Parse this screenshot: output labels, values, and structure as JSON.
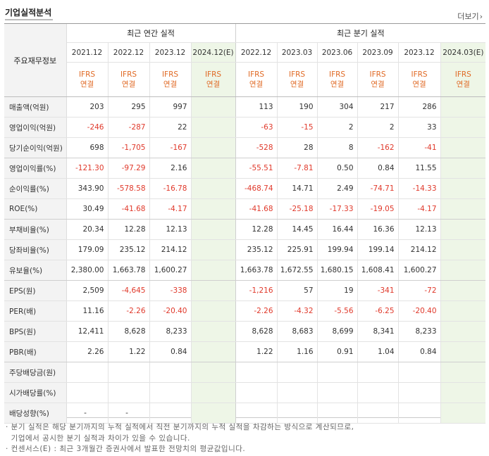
{
  "section_title": "기업실적분석",
  "more_link": "더보기",
  "header": {
    "corner": "주요재무정보",
    "annual_label": "최근 연간 실적",
    "quarter_label": "최근 분기 실적",
    "annual_periods": [
      {
        "label": "2021.12",
        "estimate": false
      },
      {
        "label": "2022.12",
        "estimate": false
      },
      {
        "label": "2023.12",
        "estimate": false
      },
      {
        "label": "2024.12(E)",
        "estimate": true
      }
    ],
    "quarter_periods": [
      {
        "label": "2022.12",
        "estimate": false
      },
      {
        "label": "2023.03",
        "estimate": false
      },
      {
        "label": "2023.06",
        "estimate": false
      },
      {
        "label": "2023.09",
        "estimate": false
      },
      {
        "label": "2023.12",
        "estimate": false
      },
      {
        "label": "2024.03(E)",
        "estimate": true
      }
    ],
    "basis_top": "IFRS",
    "basis_bottom": "연결"
  },
  "rows": [
    {
      "label": "매출액(억원)",
      "annual": [
        "203",
        "295",
        "997",
        ""
      ],
      "quarter": [
        "113",
        "190",
        "304",
        "217",
        "286",
        ""
      ]
    },
    {
      "label": "영업이익(억원)",
      "annual": [
        "-246",
        "-287",
        "22",
        ""
      ],
      "quarter": [
        "-63",
        "-15",
        "2",
        "2",
        "33",
        ""
      ]
    },
    {
      "label": "당기순이익(억원)",
      "annual": [
        "698",
        "-1,705",
        "-167",
        ""
      ],
      "quarter": [
        "-528",
        "28",
        "8",
        "-162",
        "-41",
        ""
      ]
    },
    {
      "label": "영업이익률(%)",
      "annual": [
        "-121.30",
        "-97.29",
        "2.16",
        ""
      ],
      "quarter": [
        "-55.51",
        "-7.81",
        "0.50",
        "0.84",
        "11.55",
        ""
      ]
    },
    {
      "label": "순이익률(%)",
      "annual": [
        "343.90",
        "-578.58",
        "-16.78",
        ""
      ],
      "quarter": [
        "-468.74",
        "14.71",
        "2.49",
        "-74.71",
        "-14.33",
        ""
      ]
    },
    {
      "label": "ROE(%)",
      "annual": [
        "30.49",
        "-41.68",
        "-4.17",
        ""
      ],
      "quarter": [
        "-41.68",
        "-25.18",
        "-17.33",
        "-19.05",
        "-4.17",
        ""
      ]
    },
    {
      "label": "부채비율(%)",
      "annual": [
        "20.34",
        "12.28",
        "12.13",
        ""
      ],
      "quarter": [
        "12.28",
        "14.45",
        "16.44",
        "16.36",
        "12.13",
        ""
      ]
    },
    {
      "label": "당좌비율(%)",
      "annual": [
        "179.09",
        "235.12",
        "214.12",
        ""
      ],
      "quarter": [
        "235.12",
        "225.91",
        "199.94",
        "199.14",
        "214.12",
        ""
      ]
    },
    {
      "label": "유보율(%)",
      "annual": [
        "2,380.00",
        "1,663.78",
        "1,600.27",
        ""
      ],
      "quarter": [
        "1,663.78",
        "1,672.55",
        "1,680.15",
        "1,608.41",
        "1,600.27",
        ""
      ]
    },
    {
      "label": "EPS(원)",
      "annual": [
        "2,509",
        "-4,645",
        "-338",
        ""
      ],
      "quarter": [
        "-1,216",
        "57",
        "19",
        "-341",
        "-72",
        ""
      ]
    },
    {
      "label": "PER(배)",
      "annual": [
        "11.16",
        "-2.26",
        "-20.40",
        ""
      ],
      "quarter": [
        "-2.26",
        "-4.32",
        "-5.56",
        "-6.25",
        "-20.40",
        ""
      ]
    },
    {
      "label": "BPS(원)",
      "annual": [
        "12,411",
        "8,628",
        "8,233",
        ""
      ],
      "quarter": [
        "8,628",
        "8,683",
        "8,699",
        "8,341",
        "8,233",
        ""
      ]
    },
    {
      "label": "PBR(배)",
      "annual": [
        "2.26",
        "1.22",
        "0.84",
        ""
      ],
      "quarter": [
        "1.22",
        "1.16",
        "0.91",
        "1.04",
        "0.84",
        ""
      ]
    },
    {
      "label": "주당배당금(원)",
      "annual": [
        "",
        "",
        "",
        ""
      ],
      "quarter": [
        "",
        "",
        "",
        "",
        "",
        ""
      ]
    },
    {
      "label": "시가배당률(%)",
      "annual": [
        "",
        "",
        "",
        ""
      ],
      "quarter": [
        "",
        "",
        "",
        "",
        "",
        ""
      ]
    },
    {
      "label": "배당성향(%)",
      "annual": [
        "-",
        "-",
        "",
        ""
      ],
      "quarter": [
        "",
        "",
        "",
        "",
        "",
        ""
      ]
    }
  ],
  "notes": [
    "· 분기 실적은 해당 분기까지의 누적 실적에서 직전 분기까지의 누적 실적을 차감하는 방식으로 계산되므로,",
    "  기업에서 공시한 분기 실적과 차이가 있을 수 있습니다.",
    "· 컨센서스(E) : 최근 3개월간 증권사에서 발표한 전망치의 평균값입니다."
  ],
  "colors": {
    "negative": "#e0392b",
    "basis": "#e06a25",
    "estimate_bg": "#eef6e7",
    "header_bg": "#f3f3f3"
  }
}
